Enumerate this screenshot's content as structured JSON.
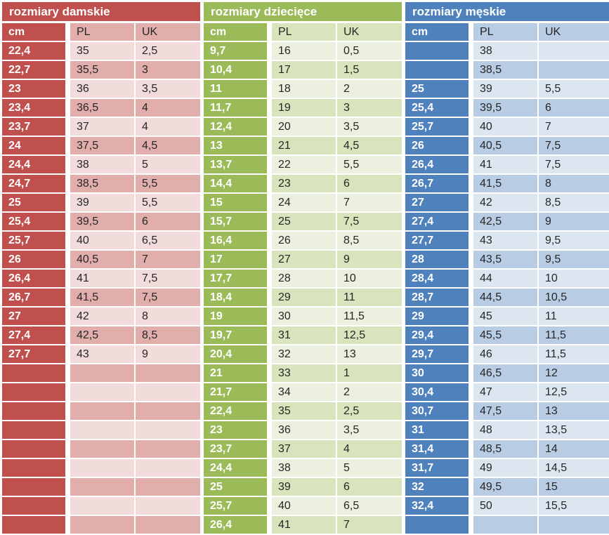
{
  "chart_data": [
    {
      "type": "table",
      "title": "rozmiary damskie",
      "columns": [
        "cm",
        "PL",
        "UK"
      ],
      "colors": {
        "accent": "#C0504D",
        "band_light": "#F2DCDB",
        "band_dark": "#E2AEAC",
        "text": "#262626",
        "title_text": "#FFFFFF"
      },
      "rows": [
        [
          "22,4",
          "35",
          "2,5"
        ],
        [
          "22,7",
          "35,5",
          "3"
        ],
        [
          "23",
          "36",
          "3,5"
        ],
        [
          "23,4",
          "36,5",
          "4"
        ],
        [
          "23,7",
          "37",
          "4"
        ],
        [
          "24",
          "37,5",
          "4,5"
        ],
        [
          "24,4",
          "38",
          "5"
        ],
        [
          "24,7",
          "38,5",
          "5,5"
        ],
        [
          "25",
          "39",
          "5,5"
        ],
        [
          "25,4",
          "39,5",
          "6"
        ],
        [
          "25,7",
          "40",
          "6,5"
        ],
        [
          "26",
          "40,5",
          "7"
        ],
        [
          "26,4",
          "41",
          "7,5"
        ],
        [
          "26,7",
          "41,5",
          "7,5"
        ],
        [
          "27",
          "42",
          "8"
        ],
        [
          "27,4",
          "42,5",
          "8,5"
        ],
        [
          "27,7",
          "43",
          "9"
        ],
        [
          "",
          "",
          ""
        ],
        [
          "",
          "",
          ""
        ],
        [
          "",
          "",
          ""
        ],
        [
          "",
          "",
          ""
        ],
        [
          "",
          "",
          ""
        ],
        [
          "",
          "",
          ""
        ],
        [
          "",
          "",
          ""
        ],
        [
          "",
          "",
          ""
        ],
        [
          "",
          "",
          ""
        ]
      ]
    },
    {
      "type": "table",
      "title": "rozmiary dziecięce",
      "columns": [
        "cm",
        "PL",
        "UK"
      ],
      "colors": {
        "accent": "#9BBB59",
        "band_light": "#EBF1DE",
        "band_dark": "#D7E4BC",
        "text": "#262626",
        "title_text": "#FFFFFF"
      },
      "rows": [
        [
          "9,7",
          "16",
          "0,5"
        ],
        [
          "10,4",
          "17",
          "1,5"
        ],
        [
          "11",
          "18",
          "2"
        ],
        [
          "11,7",
          "19",
          "3"
        ],
        [
          "12,4",
          "20",
          "3,5"
        ],
        [
          "13",
          "21",
          "4,5"
        ],
        [
          "13,7",
          "22",
          "5,5"
        ],
        [
          "14,4",
          "23",
          "6"
        ],
        [
          "15",
          "24",
          "7"
        ],
        [
          "15,7",
          "25",
          "7,5"
        ],
        [
          "16,4",
          "26",
          "8,5"
        ],
        [
          "17",
          "27",
          "9"
        ],
        [
          "17,7",
          "28",
          "10"
        ],
        [
          "18,4",
          "29",
          "11"
        ],
        [
          "19",
          "30",
          "11,5"
        ],
        [
          "19,7",
          "31",
          "12,5"
        ],
        [
          "20,4",
          "32",
          "13"
        ],
        [
          "21",
          "33",
          "1"
        ],
        [
          "21,7",
          "34",
          "2"
        ],
        [
          "22,4",
          "35",
          "2,5"
        ],
        [
          "23",
          "36",
          "3,5"
        ],
        [
          "23,7",
          "37",
          "4"
        ],
        [
          "24,4",
          "38",
          "5"
        ],
        [
          "25",
          "39",
          "6"
        ],
        [
          "25,7",
          "40",
          "6,5"
        ],
        [
          "26,4",
          "41",
          "7"
        ]
      ]
    },
    {
      "type": "table",
      "title": "rozmiary męskie",
      "columns": [
        "cm",
        "PL",
        "UK"
      ],
      "colors": {
        "accent": "#4F81BD",
        "band_light": "#DCE6F1",
        "band_dark": "#B8CCE4",
        "text": "#262626",
        "title_text": "#FFFFFF"
      },
      "rows": [
        [
          "",
          "38",
          ""
        ],
        [
          "",
          "38,5",
          ""
        ],
        [
          "25",
          "39",
          "5,5"
        ],
        [
          "25,4",
          "39,5",
          "6"
        ],
        [
          "25,7",
          "40",
          "7"
        ],
        [
          "26",
          "40,5",
          "7,5"
        ],
        [
          "26,4",
          "41",
          "7,5"
        ],
        [
          "26,7",
          "41,5",
          "8"
        ],
        [
          "27",
          "42",
          "8,5"
        ],
        [
          "27,4",
          "42,5",
          "9"
        ],
        [
          "27,7",
          "43",
          "9,5"
        ],
        [
          "28",
          "43,5",
          "9,5"
        ],
        [
          "28,4",
          "44",
          "10"
        ],
        [
          "28,7",
          "44,5",
          "10,5"
        ],
        [
          "29",
          "45",
          "11"
        ],
        [
          "29,4",
          "45,5",
          "11,5"
        ],
        [
          "29,7",
          "46",
          "11,5"
        ],
        [
          "30",
          "46,5",
          "12"
        ],
        [
          "30,4",
          "47",
          "12,5"
        ],
        [
          "30,7",
          "47,5",
          "13"
        ],
        [
          "31",
          "48",
          "13,5"
        ],
        [
          "31,4",
          "48,5",
          "14"
        ],
        [
          "31,7",
          "49",
          "14,5"
        ],
        [
          "32",
          "49,5",
          "15"
        ],
        [
          "32,4",
          "50",
          "15,5"
        ],
        [
          "",
          "",
          ""
        ]
      ]
    }
  ]
}
